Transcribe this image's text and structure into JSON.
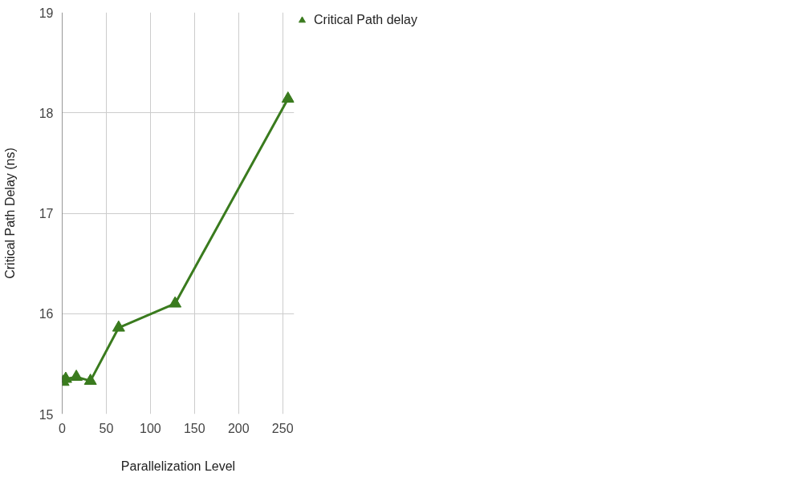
{
  "chart_data": {
    "type": "line",
    "xlabel": "Parallelization Level",
    "ylabel": "Critical Path Delay (ns)",
    "x": [
      1,
      4,
      16,
      32,
      64,
      128,
      256
    ],
    "series": [
      {
        "name": "Critical Path delay",
        "color": "#3a7b1e",
        "values": [
          15.32,
          15.35,
          15.37,
          15.33,
          15.86,
          16.1,
          18.14
        ]
      }
    ],
    "xlim": [
      0,
      263
    ],
    "xticks": [
      0,
      50,
      100,
      150,
      200,
      250
    ],
    "ylim": [
      15,
      19
    ],
    "yticks": [
      15,
      16,
      17,
      18,
      19
    ],
    "grid": true,
    "legend": "top right",
    "marker": "triangle",
    "line_style": "solid"
  }
}
